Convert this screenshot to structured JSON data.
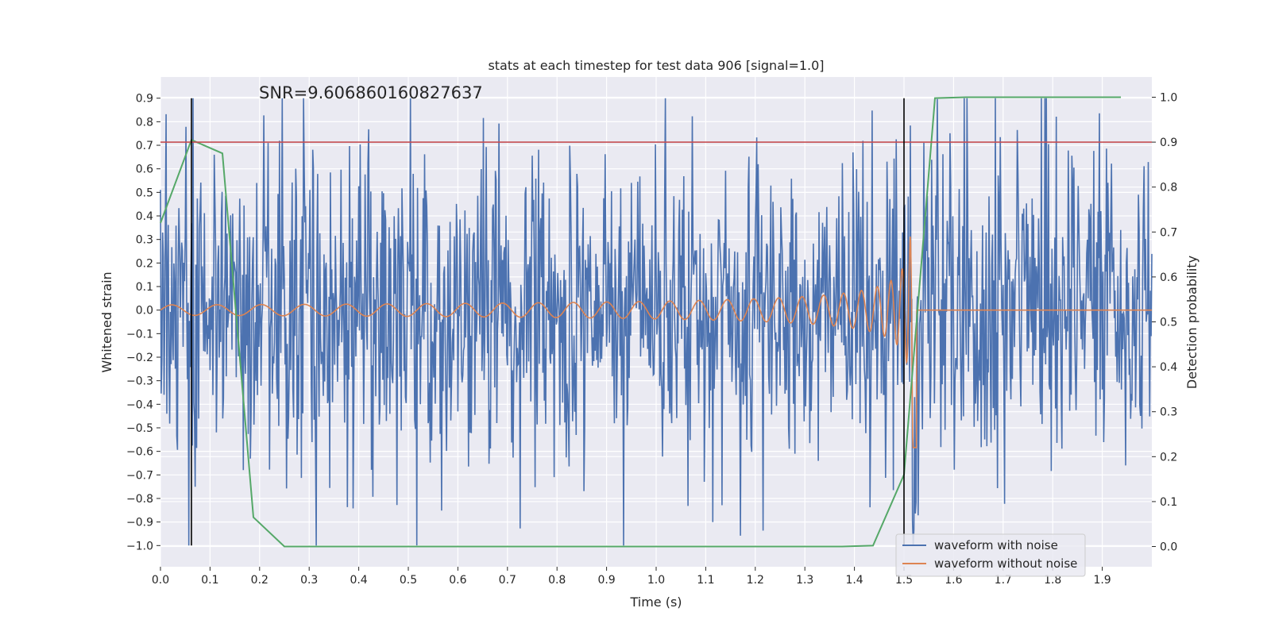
{
  "chart_data": {
    "type": "line",
    "title": "stats at each timestep for test data 906 [signal=1.0]",
    "annotation": "SNR=9.606860160827637",
    "xlabel": "Time (s)",
    "ylabel": "Whitened strain",
    "ylabel_right": "Detection probability",
    "xlim": [
      0.0,
      2.0
    ],
    "ylim": [
      -1.09,
      0.99
    ],
    "ylim_right": [
      -0.045,
      1.045
    ],
    "x_ticks": [
      0.0,
      0.1,
      0.2,
      0.3,
      0.4,
      0.5,
      0.6,
      0.7,
      0.8,
      0.9,
      1.0,
      1.1,
      1.2,
      1.3,
      1.4,
      1.5,
      1.6,
      1.7,
      1.8,
      1.9
    ],
    "x_tick_labels": [
      "0.0",
      "0.1",
      "0.2",
      "0.3",
      "0.4",
      "0.5",
      "0.6",
      "0.7",
      "0.8",
      "0.9",
      "1.0",
      "1.1",
      "1.2",
      "1.3",
      "1.4",
      "1.5",
      "1.6",
      "1.7",
      "1.8",
      "1.9"
    ],
    "y_ticks": [
      0.9,
      0.8,
      0.7,
      0.6,
      0.5,
      0.4,
      0.3,
      0.2,
      0.1,
      0.0,
      -0.1,
      -0.2,
      -0.3,
      -0.4,
      -0.5,
      -0.6,
      -0.7,
      -0.8,
      -0.9,
      -1.0
    ],
    "y_tick_labels": [
      "0.9",
      "0.8",
      "0.7",
      "0.6",
      "0.5",
      "0.4",
      "0.3",
      "0.2",
      "0.1",
      "0.0",
      "−0.1",
      "−0.2",
      "−0.3",
      "−0.4",
      "−0.5",
      "−0.6",
      "−0.7",
      "−0.8",
      "−0.9",
      "−1.0"
    ],
    "y_right_ticks": [
      1.0,
      0.9,
      0.8,
      0.7,
      0.6,
      0.5,
      0.4,
      0.3,
      0.2,
      0.1,
      0.0
    ],
    "y_right_tick_labels": [
      "1.0",
      "0.9",
      "0.8",
      "0.7",
      "0.6",
      "0.5",
      "0.4",
      "0.3",
      "0.2",
      "0.1",
      "0.0"
    ],
    "threshold": {
      "value": 0.9,
      "axis": "right",
      "color": "#c44e52"
    },
    "vertical_markers": [
      0.0625,
      1.5
    ],
    "series": [
      {
        "name": "waveform with noise",
        "color": "#4c72b0",
        "axis": "left",
        "kind": "noise",
        "amplitude": 0.35,
        "n": 1400
      },
      {
        "name": "waveform without noise",
        "color": "#dd8452",
        "axis": "left",
        "kind": "chirp",
        "merger": 1.52
      },
      {
        "name": "detection probability",
        "color": "#55a868",
        "axis": "right",
        "kind": "points",
        "x": [
          0.0,
          0.0625,
          0.125,
          0.1875,
          0.25,
          0.3125,
          0.375,
          0.4375,
          0.5,
          0.5625,
          0.625,
          0.6875,
          0.75,
          0.8125,
          0.875,
          0.9375,
          1.0,
          1.0625,
          1.125,
          1.1875,
          1.25,
          1.3125,
          1.375,
          1.4375,
          1.5,
          1.5625,
          1.625,
          1.6875,
          1.75,
          1.8125,
          1.875,
          1.9375
        ],
        "y": [
          0.72,
          0.905,
          0.875,
          0.065,
          0.0,
          0.0,
          0.0,
          0.0,
          0.0,
          0.0,
          0.0,
          0.0,
          0.0,
          0.0,
          0.0,
          0.0,
          0.0,
          0.0,
          0.0,
          0.0,
          0.0,
          0.0,
          0.0,
          0.002,
          0.16,
          0.998,
          1.0,
          1.0,
          1.0,
          1.0,
          1.0,
          1.0
        ]
      }
    ],
    "legend": {
      "placement": "lower-right",
      "entries": [
        "waveform with noise",
        "waveform without noise"
      ]
    }
  }
}
